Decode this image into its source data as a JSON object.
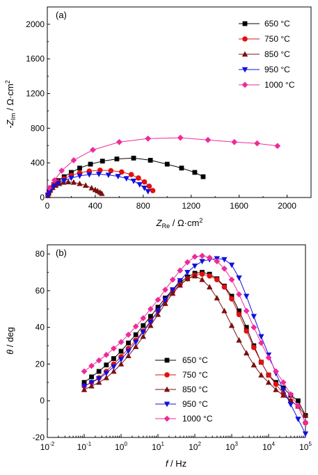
{
  "chart_data": [
    {
      "type": "scatter",
      "panel_label": "(a)",
      "xlabel": "Z",
      "xlabel_sub": "Re",
      "xlabel_unit": " / Ω·cm",
      "xlabel_sup": "2",
      "ylabel": "-Z",
      "ylabel_sub": "Im",
      "ylabel_unit": " / Ω·cm",
      "ylabel_sup": "2",
      "xlim": [
        0,
        2200
      ],
      "ylim": [
        0,
        2200
      ],
      "xticks": [
        0,
        400,
        800,
        1200,
        1600,
        2000
      ],
      "yticks": [
        0,
        400,
        800,
        1200,
        1600,
        2000
      ],
      "legend_position": "top-right",
      "series": [
        {
          "name": "650 °C",
          "color": "#000000",
          "marker": "square",
          "x": [
            5,
            15,
            30,
            55,
            90,
            140,
            200,
            270,
            360,
            460,
            580,
            720,
            860,
            1000,
            1120,
            1230,
            1300
          ],
          "y": [
            30,
            70,
            110,
            150,
            195,
            240,
            290,
            340,
            385,
            420,
            445,
            455,
            430,
            385,
            340,
            290,
            240
          ]
        },
        {
          "name": "750 °C",
          "color": "#e01010",
          "marker": "circle",
          "x": [
            5,
            15,
            30,
            55,
            90,
            140,
            200,
            270,
            350,
            440,
            530,
            620,
            700,
            760,
            810,
            850,
            880
          ],
          "y": [
            25,
            60,
            100,
            140,
            180,
            215,
            255,
            285,
            305,
            315,
            310,
            295,
            265,
            225,
            180,
            130,
            80
          ]
        },
        {
          "name": "850 °C",
          "color": "#7a1010",
          "marker": "triangle-up",
          "x": [
            5,
            12,
            25,
            45,
            70,
            100,
            135,
            175,
            220,
            270,
            320,
            370,
            400,
            420,
            440,
            455
          ],
          "y": [
            20,
            50,
            85,
            115,
            140,
            160,
            175,
            180,
            175,
            160,
            140,
            110,
            90,
            75,
            60,
            45
          ]
        },
        {
          "name": "950 °C",
          "color": "#1010e0",
          "marker": "triangle-down",
          "x": [
            5,
            15,
            30,
            55,
            90,
            140,
            200,
            270,
            350,
            430,
            510,
            590,
            660,
            720,
            770,
            810,
            840
          ],
          "y": [
            25,
            55,
            95,
            130,
            165,
            195,
            225,
            250,
            265,
            270,
            260,
            245,
            220,
            190,
            150,
            110,
            70
          ]
        },
        {
          "name": "1000 °C",
          "color": "#ee2a9a",
          "marker": "diamond",
          "x": [
            15,
            60,
            120,
            220,
            380,
            600,
            840,
            1110,
            1340,
            1560,
            1750,
            1920
          ],
          "y": [
            110,
            200,
            310,
            430,
            550,
            640,
            680,
            690,
            665,
            640,
            625,
            595
          ]
        }
      ]
    },
    {
      "type": "line",
      "panel_label": "(b)",
      "xlabel": "f",
      "xlabel_unit": " / Hz",
      "ylabel": "θ",
      "ylabel_unit": " / deg",
      "xscale": "log",
      "xlim": [
        0.01,
        100000
      ],
      "ylim": [
        -20,
        85
      ],
      "yticks": [
        -20,
        0,
        20,
        40,
        60,
        80
      ],
      "xtick_mantissa": "10",
      "xtick_exponents": [
        "-2",
        "-1",
        "0",
        "1",
        "2",
        "3",
        "4",
        "5"
      ],
      "legend_position": "bottom-center",
      "series": [
        {
          "name": "650 °C",
          "color": "#000000",
          "marker": "square",
          "x": [
            0.1,
            0.158,
            0.251,
            0.398,
            0.631,
            1,
            1.58,
            2.51,
            3.98,
            6.31,
            10,
            15.8,
            25.1,
            39.8,
            63.1,
            100,
            158,
            251,
            398,
            631,
            1000,
            1580,
            2510,
            3980,
            6310,
            10000,
            15800,
            25100,
            39800,
            63100,
            100000
          ],
          "y": [
            10,
            13,
            16,
            19.5,
            23,
            27,
            31.5,
            36,
            41,
            46,
            51,
            56,
            60.5,
            64.5,
            67.5,
            69.5,
            70,
            69,
            66.5,
            62.5,
            57,
            49,
            40,
            30,
            21,
            14,
            10,
            7,
            3,
            0,
            -8
          ]
        },
        {
          "name": "750 °C",
          "color": "#e01010",
          "marker": "circle",
          "x": [
            0.1,
            0.158,
            0.251,
            0.398,
            0.631,
            1,
            1.58,
            2.51,
            3.98,
            6.31,
            10,
            15.8,
            25.1,
            39.8,
            63.1,
            100,
            158,
            251,
            398,
            631,
            1000,
            1580,
            2510,
            3980,
            6310,
            10000,
            15800,
            25100,
            39800,
            63100,
            100000
          ],
          "y": [
            8,
            10,
            12.5,
            16,
            20,
            24,
            28.5,
            33,
            38,
            43.5,
            49,
            54.5,
            59.5,
            63.5,
            66.5,
            68.5,
            69,
            68,
            66,
            62,
            55.5,
            47,
            38,
            29,
            21,
            14,
            9,
            4,
            0,
            -3,
            -12
          ]
        },
        {
          "name": "850 °C",
          "color": "#7a1010",
          "marker": "triangle-up",
          "x": [
            0.1,
            0.158,
            0.251,
            0.398,
            0.631,
            1,
            1.58,
            2.51,
            3.98,
            6.31,
            10,
            15.8,
            25.1,
            39.8,
            63.1,
            100,
            158,
            251,
            398,
            631,
            1000,
            1580,
            2510,
            3980,
            6310,
            10000,
            15800,
            25100,
            39800,
            63100,
            100000
          ],
          "y": [
            6,
            8,
            10,
            12.5,
            16,
            20,
            24.5,
            29.5,
            35,
            41,
            47,
            53,
            58.5,
            63,
            66.5,
            68,
            66,
            62,
            56,
            49,
            41,
            33,
            26,
            19.5,
            14,
            10,
            6,
            3,
            0,
            -3,
            -8
          ]
        },
        {
          "name": "950 °C",
          "color": "#1010e0",
          "marker": "triangle-down",
          "x": [
            0.1,
            0.158,
            0.251,
            0.398,
            0.631,
            1,
            1.58,
            2.51,
            3.98,
            6.31,
            10,
            15.8,
            25.1,
            39.8,
            63.1,
            100,
            158,
            251,
            398,
            631,
            1000,
            1580,
            2510,
            3980,
            6310,
            10000,
            15800,
            25100,
            39800,
            63100,
            100000
          ],
          "y": [
            8,
            10,
            12,
            15,
            18.5,
            22.5,
            27,
            32,
            37.5,
            43,
            49,
            55,
            60.5,
            65.5,
            70,
            73.5,
            76,
            77,
            77.5,
            77,
            74,
            67,
            57,
            46,
            35,
            25,
            15,
            6,
            -2,
            -10,
            -18
          ]
        },
        {
          "name": "1000 °C",
          "color": "#ee2a9a",
          "marker": "diamond",
          "x": [
            0.1,
            0.158,
            0.251,
            0.398,
            0.631,
            1,
            1.58,
            2.51,
            3.98,
            6.31,
            10,
            15.8,
            25.1,
            39.8,
            63.1,
            100,
            158,
            251,
            398,
            631,
            1000,
            1580,
            2510,
            3980,
            6310,
            10000,
            15800,
            25100,
            39800,
            63100,
            100000
          ],
          "y": [
            16,
            19,
            22,
            25,
            28.5,
            32,
            36,
            40.5,
            45,
            50,
            55,
            60.5,
            66,
            71,
            75.5,
            78.5,
            79,
            78,
            76,
            72,
            66,
            58,
            49,
            40,
            31.5,
            23.5,
            16,
            10,
            3.5,
            -3,
            -12
          ]
        }
      ]
    }
  ]
}
